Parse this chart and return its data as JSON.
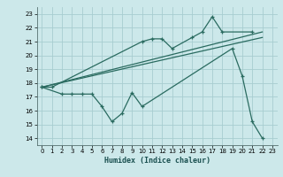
{
  "xlabel": "Humidex (Indice chaleur)",
  "bg_color": "#cce8ea",
  "grid_color": "#a8cdd0",
  "line_color": "#2a6b60",
  "xlim": [
    -0.5,
    23.5
  ],
  "ylim": [
    13.5,
    23.5
  ],
  "xticks": [
    0,
    1,
    2,
    3,
    4,
    5,
    6,
    7,
    8,
    9,
    10,
    11,
    12,
    13,
    14,
    15,
    16,
    17,
    18,
    19,
    20,
    21,
    22,
    23
  ],
  "yticks": [
    14,
    15,
    16,
    17,
    18,
    19,
    20,
    21,
    22,
    23
  ],
  "series1_x": [
    0,
    1,
    10,
    11,
    12,
    13,
    15,
    16,
    17,
    18,
    21
  ],
  "series1_y": [
    17.7,
    17.7,
    21.0,
    21.2,
    21.2,
    20.5,
    21.3,
    21.7,
    22.8,
    21.7,
    21.7
  ],
  "series2_x": [
    0,
    2,
    3,
    4,
    5,
    6,
    7,
    8,
    9,
    10,
    19,
    20,
    21,
    22
  ],
  "series2_y": [
    17.7,
    17.2,
    17.2,
    17.2,
    17.2,
    16.3,
    15.2,
    15.8,
    17.3,
    16.3,
    20.5,
    18.5,
    15.2,
    14.0
  ],
  "trend1_x": [
    0,
    22
  ],
  "trend1_y": [
    17.7,
    21.7
  ],
  "trend2_x": [
    0,
    22
  ],
  "trend2_y": [
    17.7,
    21.3
  ]
}
